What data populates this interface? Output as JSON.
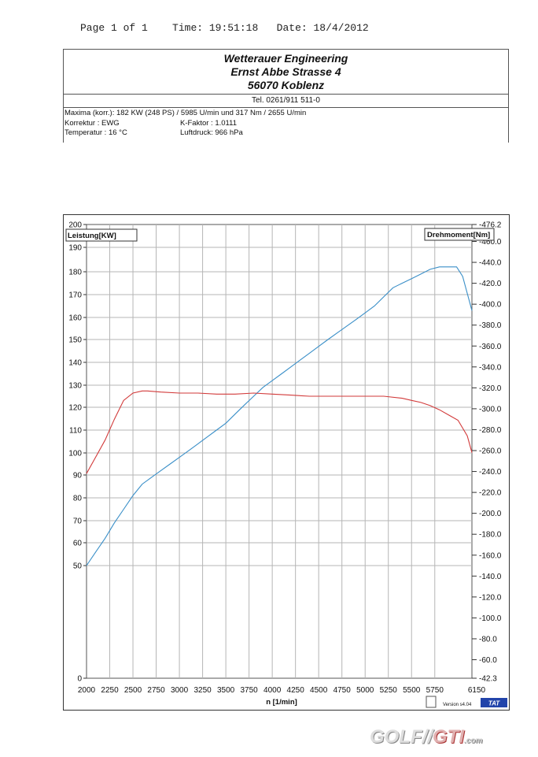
{
  "header": {
    "page": "Page 1 of 1",
    "time": "Time: 19:51:18",
    "date": "Date: 18/4/2012"
  },
  "company": {
    "name": "Wetterauer Engineering",
    "street": "Ernst Abbe Strasse 4",
    "city": "56070 Koblenz",
    "tel": "Tel. 0261/911 511-0"
  },
  "info": {
    "maxima": "Maxima (korr.):  182 KW (248 PS) /  5985 U/min  und   317 Nm /  2655 U/min",
    "korrektur": "Korrektur :  EWG",
    "kfaktor": "K-Faktor :   1.0111",
    "temperatur": "Temperatur :  16 °C",
    "luftdruck": "Luftdruck:   966 hPa"
  },
  "watermark": {
    "part1": "GOLF",
    "part2": "GTI",
    "part3": ".com"
  },
  "colors": {
    "power": "#3a8fc8",
    "torque": "#d23a3a",
    "grid": "#b5b5b5",
    "badge": "#2244aa"
  },
  "chart_data": {
    "type": "line",
    "xlabel": "n  [1/min]",
    "left_axis_label": "Leistung[KW]",
    "right_axis_label": "Drehmoment[Nm]",
    "xlim": [
      2000,
      6150
    ],
    "x_ticks": [
      "2000",
      "2250",
      "2500",
      "2750",
      "3000",
      "3250",
      "3500",
      "3750",
      "4000",
      "4250",
      "4500",
      "4750",
      "5000",
      "5250",
      "5500",
      "5750",
      "6150"
    ],
    "ylim_left": [
      0,
      200
    ],
    "y_ticks_left": [
      "0",
      "50",
      "60",
      "70",
      "80",
      "90",
      "100",
      "110",
      "120",
      "130",
      "140",
      "150",
      "160",
      "170",
      "180",
      "190",
      "200"
    ],
    "ylim_right": [
      42.3,
      476.2
    ],
    "y_ticks_right": [
      "-42.3",
      "-60.0",
      "-80.0",
      "-100.0",
      "-120.0",
      "-140.0",
      "-160.0",
      "-180.0",
      "-200.0",
      "-220.0",
      "-240.0",
      "-260.0",
      "-280.0",
      "-300.0",
      "-320.0",
      "-340.0",
      "-360.0",
      "-380.0",
      "-400.0",
      "-420.0",
      "-440.0",
      "-460.0",
      "-476.2"
    ],
    "series": [
      {
        "name": "Leistung",
        "axis": "left",
        "x": [
          2000,
          2100,
          2200,
          2300,
          2400,
          2500,
          2600,
          2700,
          2800,
          2900,
          3000,
          3100,
          3200,
          3300,
          3400,
          3500,
          3600,
          3700,
          3800,
          3900,
          4000,
          4100,
          4200,
          4300,
          4400,
          4500,
          4600,
          4700,
          4800,
          4900,
          5000,
          5100,
          5200,
          5300,
          5400,
          5500,
          5600,
          5700,
          5800,
          5900,
          5985,
          6050,
          6150
        ],
        "y": [
          50,
          56,
          62,
          69,
          75,
          81,
          86,
          89,
          92,
          95,
          98,
          101,
          104,
          107,
          110,
          113,
          117,
          121,
          125,
          129,
          132,
          135,
          138,
          141,
          144,
          147,
          150,
          153,
          156,
          159,
          162,
          165,
          169,
          173,
          175,
          177,
          179,
          181,
          182,
          182,
          182,
          178,
          163
        ]
      },
      {
        "name": "Drehmoment",
        "axis": "right",
        "x": [
          2000,
          2100,
          2200,
          2300,
          2400,
          2500,
          2600,
          2655,
          2800,
          3000,
          3200,
          3400,
          3600,
          3800,
          4000,
          4200,
          4400,
          4600,
          4800,
          5000,
          5200,
          5400,
          5500,
          5600,
          5700,
          5800,
          5900,
          6000,
          6100,
          6150
        ],
        "y": [
          238,
          254,
          270,
          290,
          308,
          315,
          317,
          317,
          316,
          315,
          315,
          314,
          314,
          315,
          314,
          313,
          312,
          312,
          312,
          312,
          312,
          310,
          308,
          306,
          303,
          299,
          294,
          289,
          274,
          258
        ]
      }
    ],
    "badge": "TAT",
    "version": "Version s4.04"
  }
}
